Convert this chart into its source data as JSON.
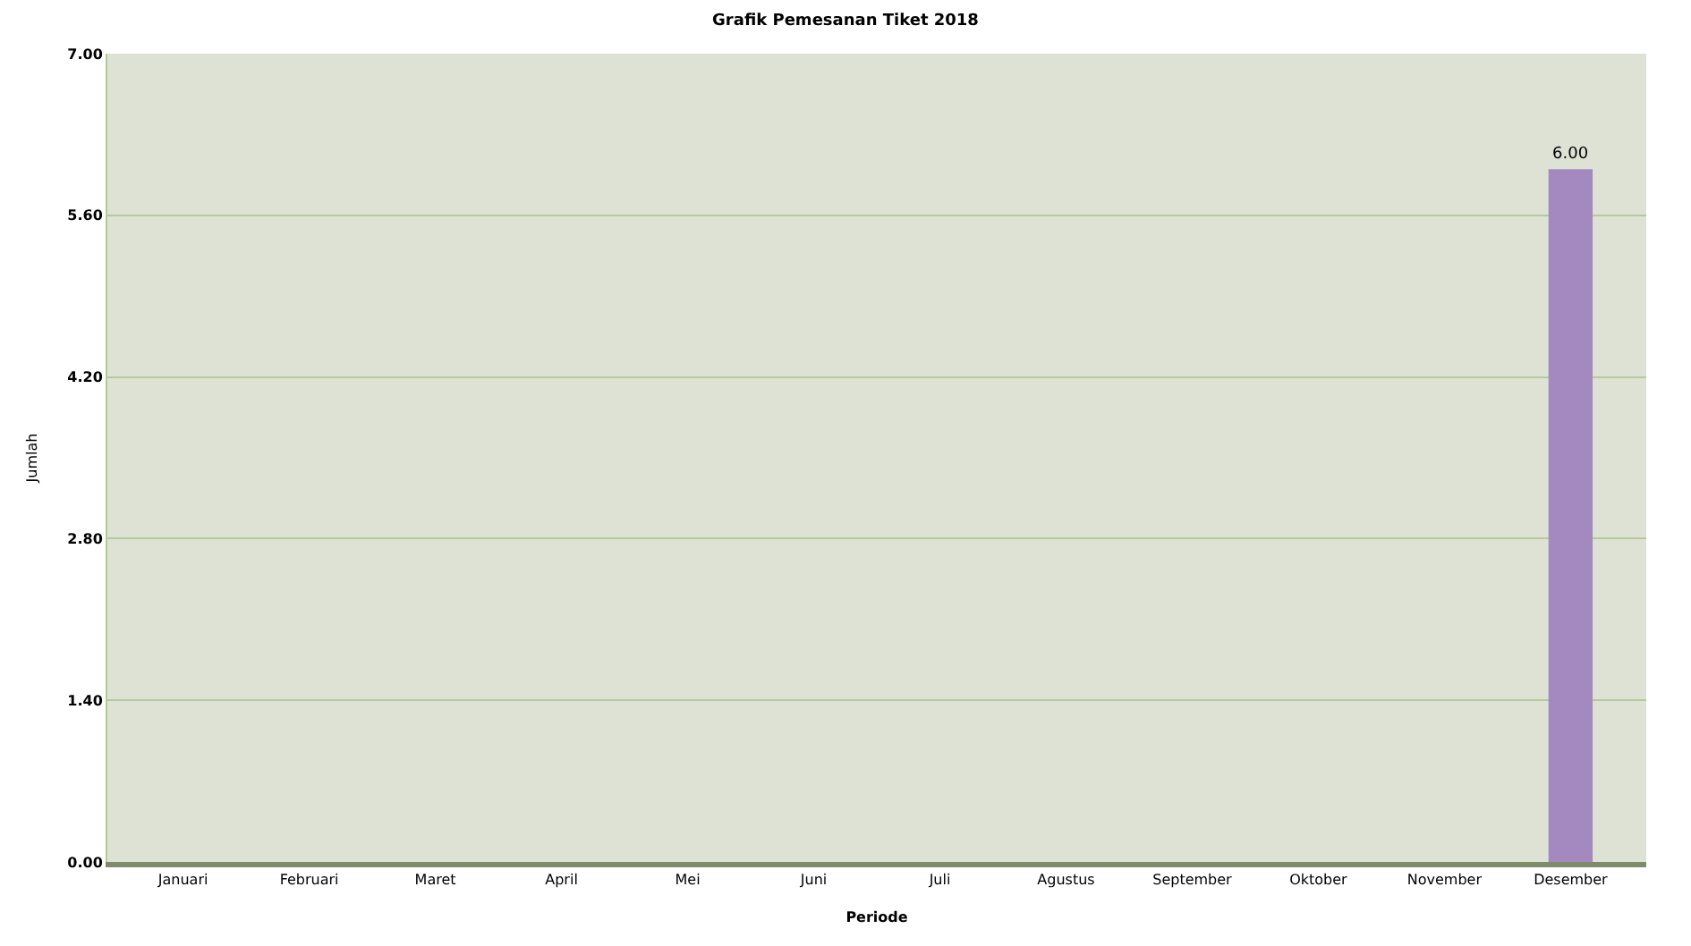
{
  "chart_data": {
    "type": "bar",
    "title": "Grafik Pemesanan Tiket 2018",
    "xlabel": "Periode",
    "ylabel": "Jumlah",
    "categories": [
      "Januari",
      "Februari",
      "Maret",
      "April",
      "Mei",
      "Juni",
      "Juli",
      "Agustus",
      "September",
      "Oktober",
      "November",
      "Desember"
    ],
    "values": [
      0,
      0,
      0,
      0,
      0,
      0,
      0,
      0,
      0,
      0,
      0,
      6
    ],
    "value_labels": [
      null,
      null,
      null,
      null,
      null,
      null,
      null,
      null,
      null,
      null,
      null,
      "6.00"
    ],
    "color": "#a389c0",
    "ylim": [
      0,
      7
    ],
    "yticks": [
      {
        "value": 0,
        "label": "0.00"
      },
      {
        "value": 1.4,
        "label": "1.40"
      },
      {
        "value": 2.8,
        "label": "2.80"
      },
      {
        "value": 4.2,
        "label": "4.20"
      },
      {
        "value": 5.6,
        "label": "5.60"
      },
      {
        "value": 7,
        "label": "7.00"
      }
    ],
    "grid": "y"
  }
}
